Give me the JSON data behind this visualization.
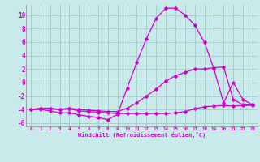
{
  "xlabel": "Windchill (Refroidissement éolien,°C)",
  "background_color": "#c8eaea",
  "grid_color": "#aacccc",
  "line_color": "#cc00cc",
  "x_ticks": [
    0,
    1,
    2,
    3,
    4,
    5,
    6,
    7,
    8,
    9,
    10,
    11,
    12,
    13,
    14,
    15,
    16,
    17,
    18,
    19,
    20,
    21,
    22,
    23
  ],
  "ylim": [
    -6.5,
    11.5
  ],
  "xlim": [
    -0.5,
    23.5
  ],
  "yticks": [
    -6,
    -4,
    -2,
    0,
    2,
    4,
    6,
    8,
    10
  ],
  "y_main": [
    -4,
    -4,
    -4.2,
    -4.5,
    -4.5,
    -4.8,
    -5,
    -5.2,
    -5.5,
    -4.7,
    -0.8,
    3,
    6.5,
    9.5,
    11,
    11,
    10,
    8.5,
    6,
    2,
    -3,
    0,
    -2.5,
    -3.3
  ],
  "y_low": [
    -4,
    -3.9,
    -3.9,
    -4.0,
    -3.9,
    -4.2,
    -4.3,
    -4.4,
    -4.5,
    -4.6,
    -4.6,
    -4.6,
    -4.6,
    -4.6,
    -4.6,
    -4.5,
    -4.3,
    -3.9,
    -3.6,
    -3.5,
    -3.4,
    -3.5,
    -3.4,
    -3.4
  ],
  "y_mid": [
    -4,
    -3.8,
    -3.8,
    -4.0,
    -3.8,
    -4.0,
    -4.1,
    -4.2,
    -4.3,
    -4.3,
    -3.8,
    -3.0,
    -2.0,
    -1.0,
    0.2,
    1.0,
    1.5,
    2.0,
    2.0,
    2.2,
    2.3,
    -2.5,
    -3.3,
    -3.3
  ]
}
